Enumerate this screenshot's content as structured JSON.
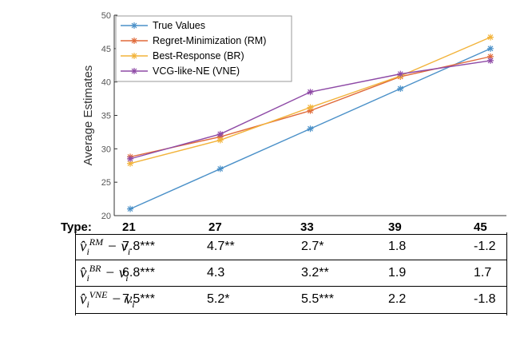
{
  "chart_data": {
    "type": "line",
    "ylabel": "Average Estimates",
    "xlabel": "",
    "ylim": [
      20,
      50
    ],
    "yticks": [
      20,
      25,
      30,
      35,
      40,
      45,
      50
    ],
    "x": [
      21,
      27,
      33,
      39,
      45
    ],
    "series": [
      {
        "name": "True Values",
        "color": "#4a90c8",
        "values": [
          21,
          27,
          33,
          39,
          45
        ]
      },
      {
        "name": "Regret-Minimization (RM)",
        "color": "#e06a3a",
        "values": [
          28.8,
          31.8,
          35.7,
          40.8,
          43.8
        ]
      },
      {
        "name": "Best-Response (BR)",
        "color": "#f2b33a",
        "values": [
          27.8,
          31.3,
          36.2,
          40.9,
          46.7
        ]
      },
      {
        "name": "VCG-like-NE (VNE)",
        "color": "#8e4aa6",
        "values": [
          28.5,
          32.2,
          38.5,
          41.2,
          43.2
        ]
      }
    ],
    "legend_position": "top-left",
    "grid": false
  },
  "table": {
    "type_label": "Type:",
    "types": [
      "21",
      "27",
      "33",
      "39",
      "45"
    ],
    "rows": [
      {
        "sup": "RM",
        "values": [
          "7.8***",
          "4.7**",
          "2.7*",
          "1.8",
          "-1.2"
        ]
      },
      {
        "sup": "BR",
        "values": [
          "6.8***",
          "4.3",
          "3.2**",
          "1.9",
          "1.7"
        ]
      },
      {
        "sup": "VNE",
        "values": [
          "7.5***",
          "5.2*",
          "5.5***",
          "2.2",
          "-1.8"
        ]
      }
    ]
  }
}
